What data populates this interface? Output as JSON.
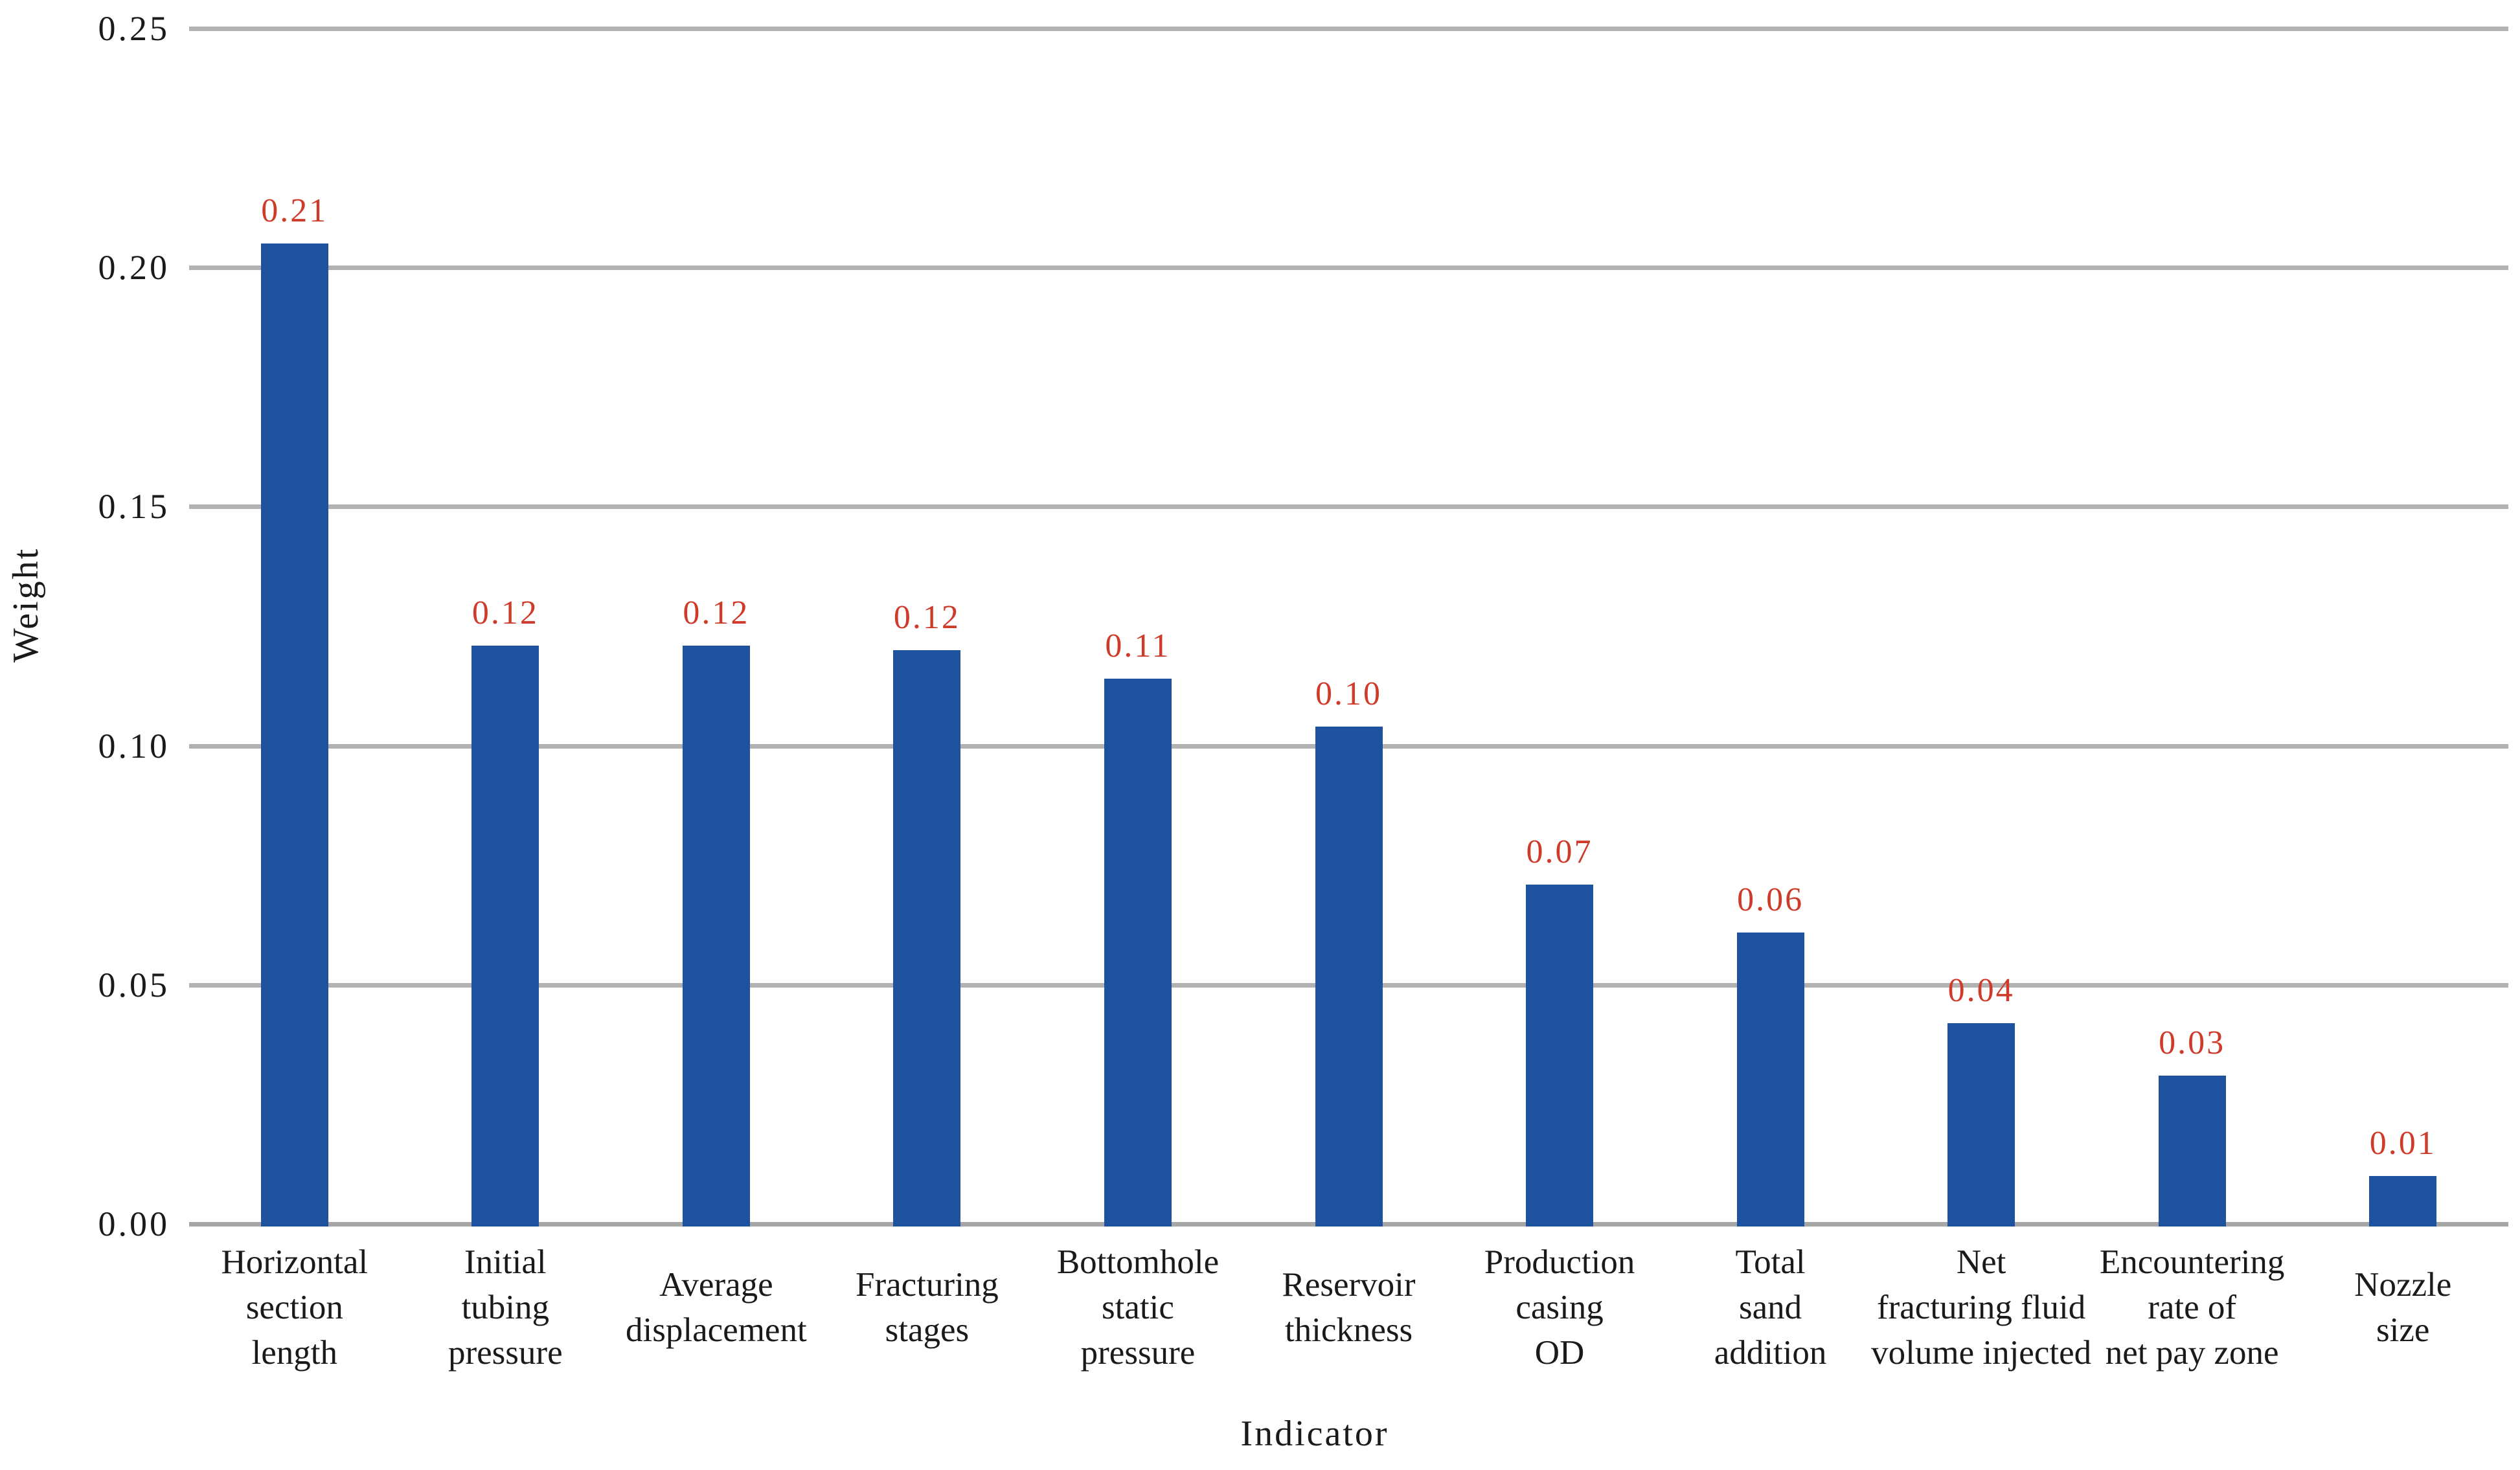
{
  "figure": {
    "background": "#ffffff"
  },
  "chart_data": {
    "type": "bar",
    "title": "",
    "xlabel": "Indicator",
    "ylabel": "Weight",
    "ylim": [
      0,
      0.25
    ],
    "ytick_step": 0.05,
    "yticks": [
      "0.00",
      "0.05",
      "0.10",
      "0.15",
      "0.20",
      "0.25"
    ],
    "grid": "horizontal",
    "legend": "none",
    "categories": [
      [
        "Horizontal",
        "section",
        "length"
      ],
      [
        "Initial",
        "tubing",
        "pressure"
      ],
      [
        "Average",
        "displacement"
      ],
      [
        "Fracturing",
        "stages"
      ],
      [
        "Bottomhole",
        "static",
        "pressure"
      ],
      [
        "Reservoir",
        "thickness"
      ],
      [
        "Production",
        "casing",
        "OD"
      ],
      [
        "Total",
        "sand",
        "addition"
      ],
      [
        "Net",
        "fracturing fluid",
        "volume injected"
      ],
      [
        "Encountering",
        "rate of",
        "net pay zone"
      ],
      [
        "Nozzle",
        "size"
      ]
    ],
    "values": [
      0.21,
      0.12,
      0.12,
      0.12,
      0.11,
      0.1,
      0.07,
      0.06,
      0.04,
      0.03,
      0.01
    ],
    "value_labels": [
      "0.21",
      "0.12",
      "0.12",
      "0.12",
      "0.11",
      "0.10",
      "0.07",
      "0.06",
      "0.04",
      "0.03",
      "0.01"
    ],
    "bar_heights": [
      0.205,
      0.121,
      0.121,
      0.12,
      0.114,
      0.104,
      0.071,
      0.061,
      0.042,
      0.031,
      0.01
    ],
    "colors": {
      "bar": "#1f529e",
      "value_label": "#cf3b2a",
      "gridline": "#b2b2b2",
      "axis_line": "#a6a6a6",
      "text": "#1a1a1a"
    }
  }
}
